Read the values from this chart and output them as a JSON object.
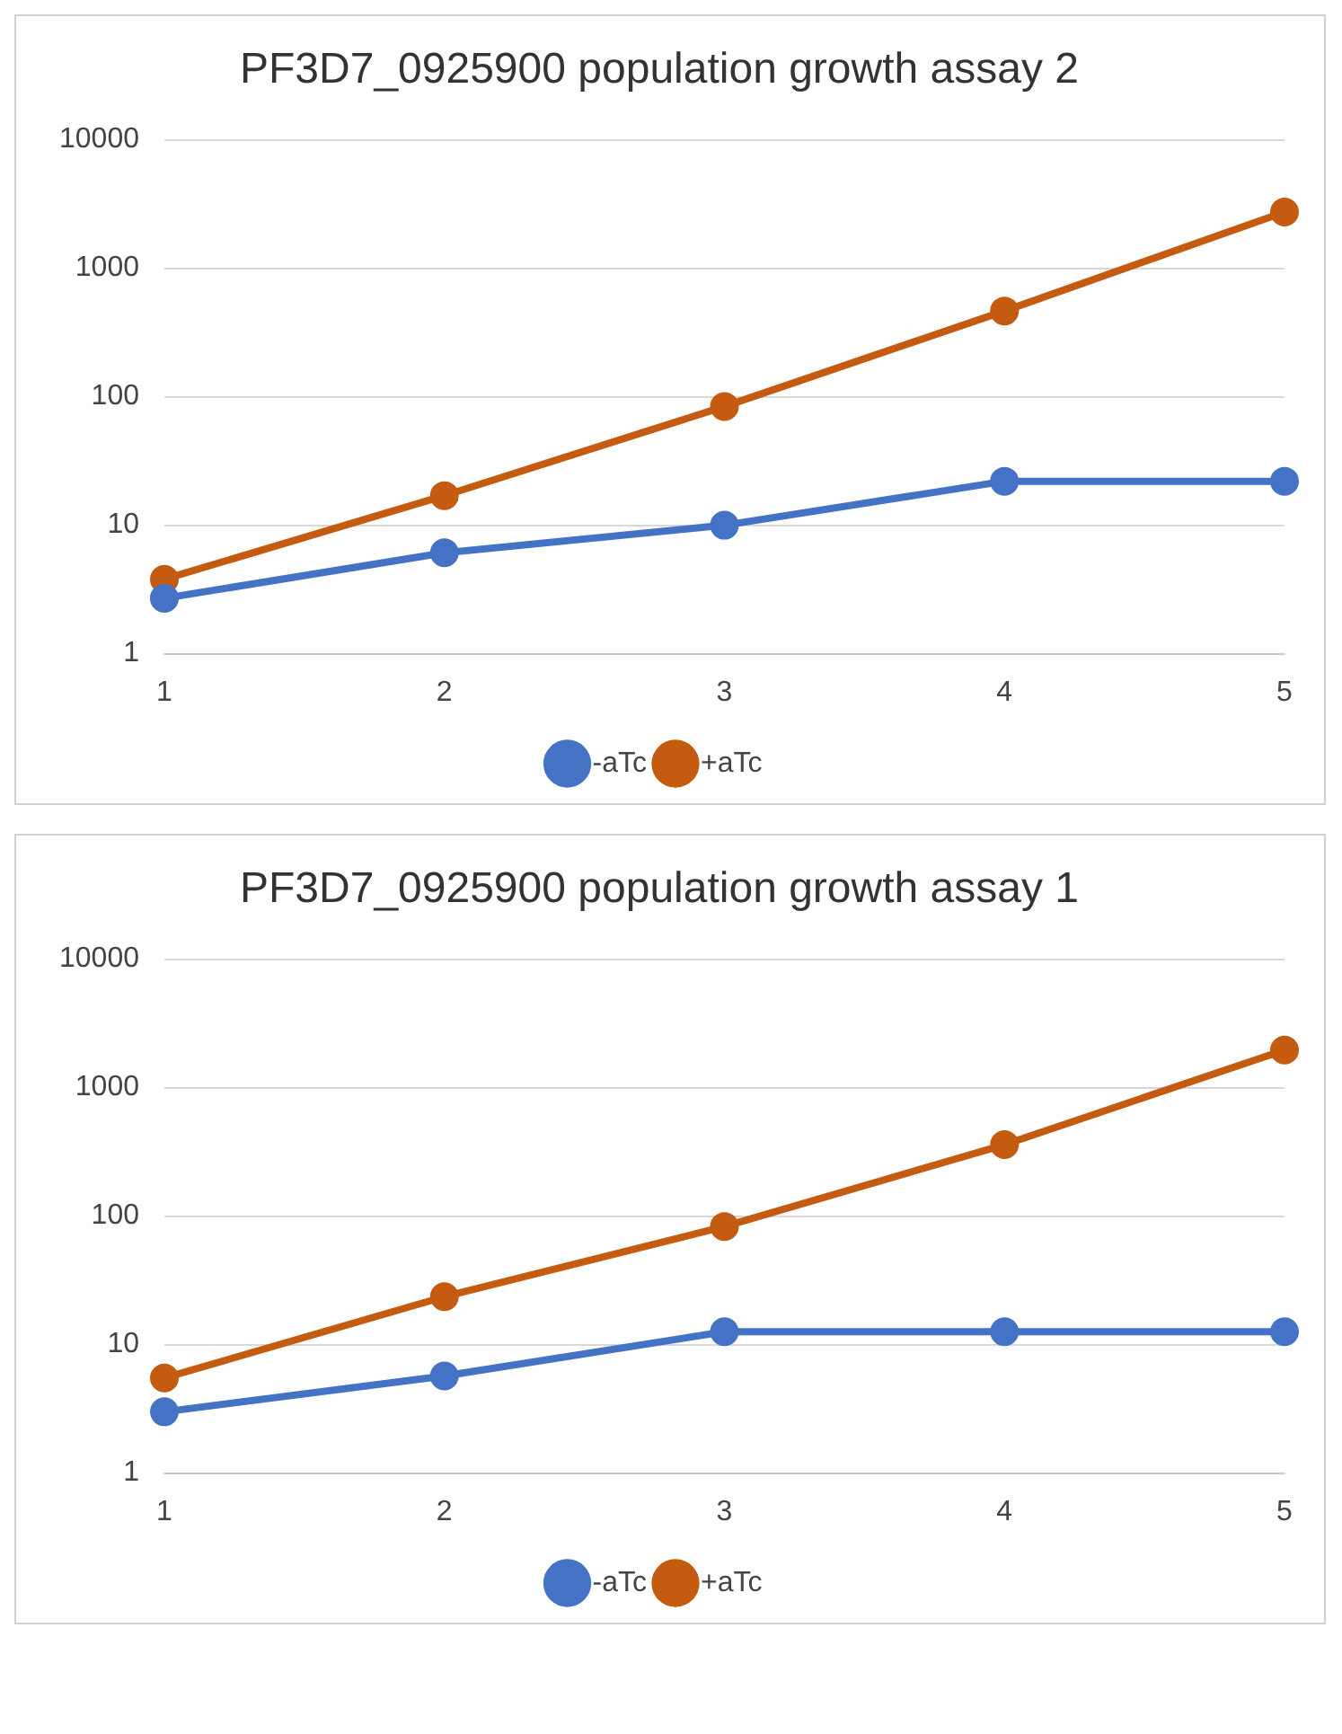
{
  "chart_data": [
    {
      "type": "line",
      "title": "PF3D7_0925900 population growth assay 2",
      "categories": [
        "1",
        "2",
        "3",
        "4",
        "5"
      ],
      "series": [
        {
          "name": "-aTc",
          "color": "#4472c4",
          "values": [
            2.7,
            6.1,
            10,
            22,
            22
          ]
        },
        {
          "name": "+aTc",
          "color": "#c55a11",
          "values": [
            3.8,
            17,
            84,
            465,
            2740
          ]
        }
      ],
      "log": "y",
      "ylim": [
        1,
        10000
      ],
      "yticks": [
        1,
        10,
        100,
        1000,
        10000
      ],
      "grid": "y",
      "legend": "bottom",
      "marker": "circle",
      "line_style": "solid"
    },
    {
      "type": "line",
      "title": "PF3D7_0925900 population growth assay 1",
      "categories": [
        "1",
        "2",
        "3",
        "4",
        "5"
      ],
      "series": [
        {
          "name": "-aTc",
          "color": "#4472c4",
          "values": [
            3.0,
            5.7,
            12.6,
            12.6,
            12.6
          ]
        },
        {
          "name": "+aTc",
          "color": "#c55a11",
          "values": [
            5.5,
            23.6,
            83,
            360,
            1960
          ]
        }
      ],
      "log": "y",
      "ylim": [
        1,
        10000
      ],
      "yticks": [
        1,
        10,
        100,
        1000,
        10000
      ],
      "grid": "y",
      "legend": "bottom",
      "marker": "circle",
      "line_style": "solid"
    }
  ]
}
